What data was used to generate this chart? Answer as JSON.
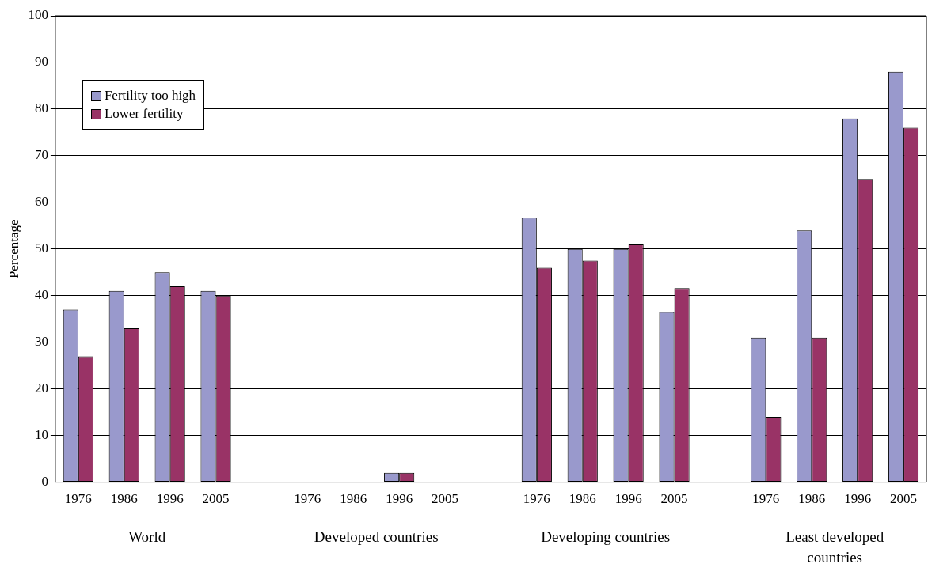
{
  "chart_data": {
    "type": "bar",
    "ylabel": "Percentage",
    "categories": [
      "1976",
      "1986",
      "1996",
      "2005",
      null,
      "1976",
      "1986",
      "1996",
      "2005",
      null,
      "1976",
      "1986",
      "1996",
      "2005",
      null,
      "1976",
      "1986",
      "1996",
      "2005"
    ],
    "series": [
      {
        "name": "Fertility too high",
        "color": "#9999cc",
        "values": [
          37,
          41,
          45,
          41,
          null,
          0,
          0,
          2,
          0,
          null,
          56.7,
          50,
          50,
          36.5,
          null,
          31,
          54,
          78,
          88
        ]
      },
      {
        "name": "Lower fertility",
        "color": "#993366",
        "values": [
          27,
          33,
          42,
          40,
          null,
          0,
          0,
          2,
          0,
          null,
          46,
          47.5,
          51,
          41.6,
          null,
          14,
          31,
          65,
          76
        ]
      }
    ],
    "ylim": [
      0,
      100
    ],
    "yticks": [
      0,
      10,
      20,
      30,
      40,
      50,
      60,
      70,
      80,
      90,
      100
    ],
    "grid": "y",
    "legend": "top left",
    "annotations": [
      "World",
      "Developed countries",
      "Developing countries",
      "Least developed countries"
    ]
  }
}
